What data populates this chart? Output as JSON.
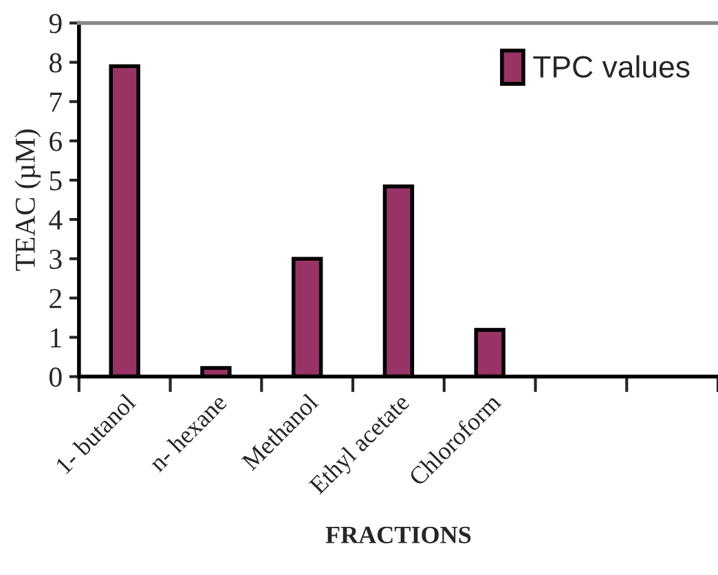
{
  "chart_data": {
    "type": "bar",
    "xlabel": "FRACTIONS",
    "ylabel": "TEAC (µM)",
    "categories": [
      "1- butanol",
      "n- hexane",
      "Methanol",
      "Ethyl acetate",
      "Chloroform",
      null,
      null
    ],
    "series": [
      {
        "name": "TPC values",
        "color": "#993366",
        "values": [
          7.9,
          0.22,
          3.0,
          4.84,
          1.19,
          null,
          null
        ]
      }
    ],
    "ylim": [
      0,
      9
    ],
    "yticks": [
      0,
      1,
      2,
      3,
      4,
      5,
      6,
      7,
      8,
      9
    ],
    "grid": false,
    "legend": "top right"
  }
}
